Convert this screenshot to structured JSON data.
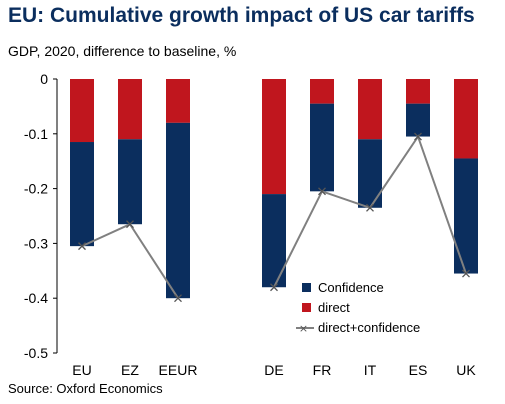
{
  "title": "EU: Cumulative growth impact of US car tariffs",
  "subtitle": "GDP, 2020, difference to baseline, %",
  "source": "Source: Oxford Economics",
  "colors": {
    "confidence": "#0b2e5e",
    "direct": "#c0161e",
    "line": "#808080",
    "title": "#0b2e5e"
  },
  "chart_data": {
    "type": "bar",
    "stacked": true,
    "categories": [
      "EU",
      "EZ",
      "EEUR",
      "DE",
      "FR",
      "IT",
      "ES",
      "UK"
    ],
    "series": [
      {
        "name": "Confidence",
        "type": "bar",
        "values": [
          -0.19,
          -0.155,
          -0.32,
          -0.17,
          -0.16,
          -0.125,
          -0.06,
          -0.21
        ]
      },
      {
        "name": "direct",
        "type": "bar",
        "values": [
          -0.115,
          -0.11,
          -0.08,
          -0.21,
          -0.045,
          -0.11,
          -0.045,
          -0.145
        ]
      },
      {
        "name": "direct+confidence",
        "type": "line",
        "values": [
          -0.305,
          -0.265,
          -0.4,
          -0.38,
          -0.205,
          -0.235,
          -0.105,
          -0.355
        ]
      }
    ],
    "ylim": [
      -0.5,
      0
    ],
    "yticks": [
      "0",
      "-0.1",
      "-0.2",
      "-0.3",
      "-0.4",
      "-0.5"
    ],
    "legend": "bottom-right",
    "grid": false
  }
}
